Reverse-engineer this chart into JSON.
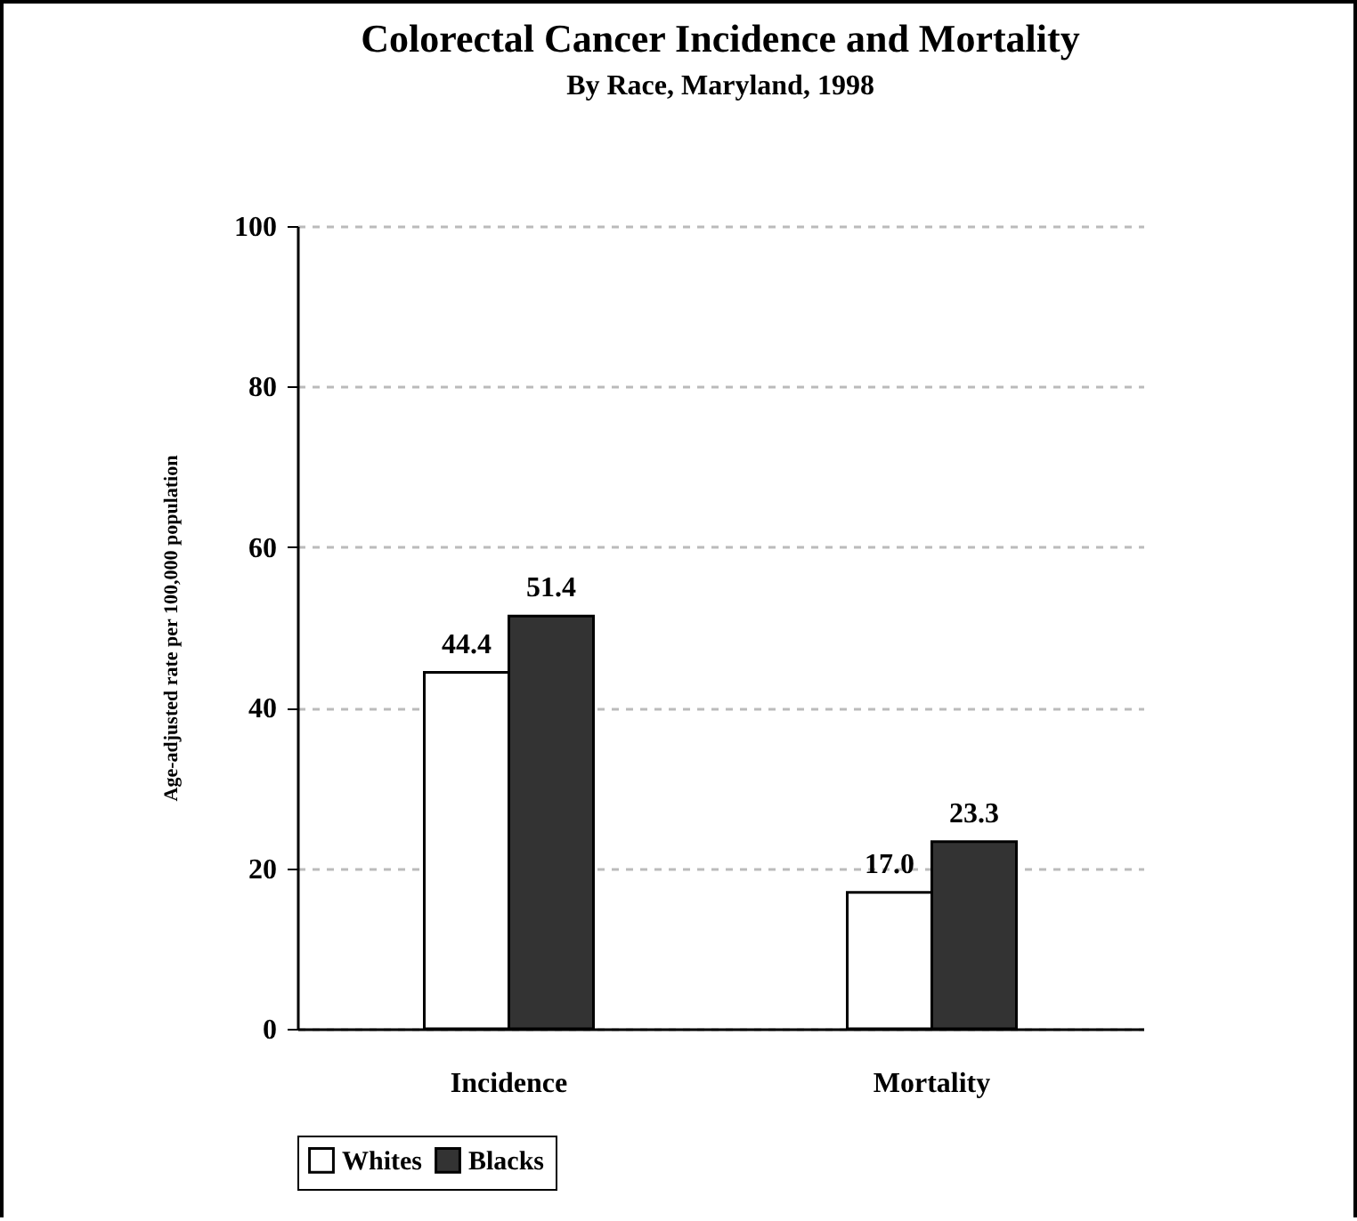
{
  "chart_data": {
    "type": "bar",
    "title": "Colorectal Cancer Incidence and Mortality",
    "subtitle": "By Race, Maryland, 1998",
    "ylabel": "Age-adjusted rate per 100,000 population",
    "categories": [
      "Incidence",
      "Mortality"
    ],
    "series": [
      {
        "name": "Whites",
        "color": "#ffffff",
        "values": [
          44.4,
          17.0
        ],
        "value_labels": [
          "44.4",
          "17.0"
        ]
      },
      {
        "name": "Blacks",
        "color": "#333333",
        "values": [
          51.4,
          23.3
        ],
        "value_labels": [
          "51.4",
          "23.3"
        ]
      }
    ],
    "ylim": [
      0,
      100
    ],
    "yticks": [
      0,
      20,
      40,
      60,
      80,
      100
    ],
    "grid": "y",
    "legend": "bottom"
  }
}
